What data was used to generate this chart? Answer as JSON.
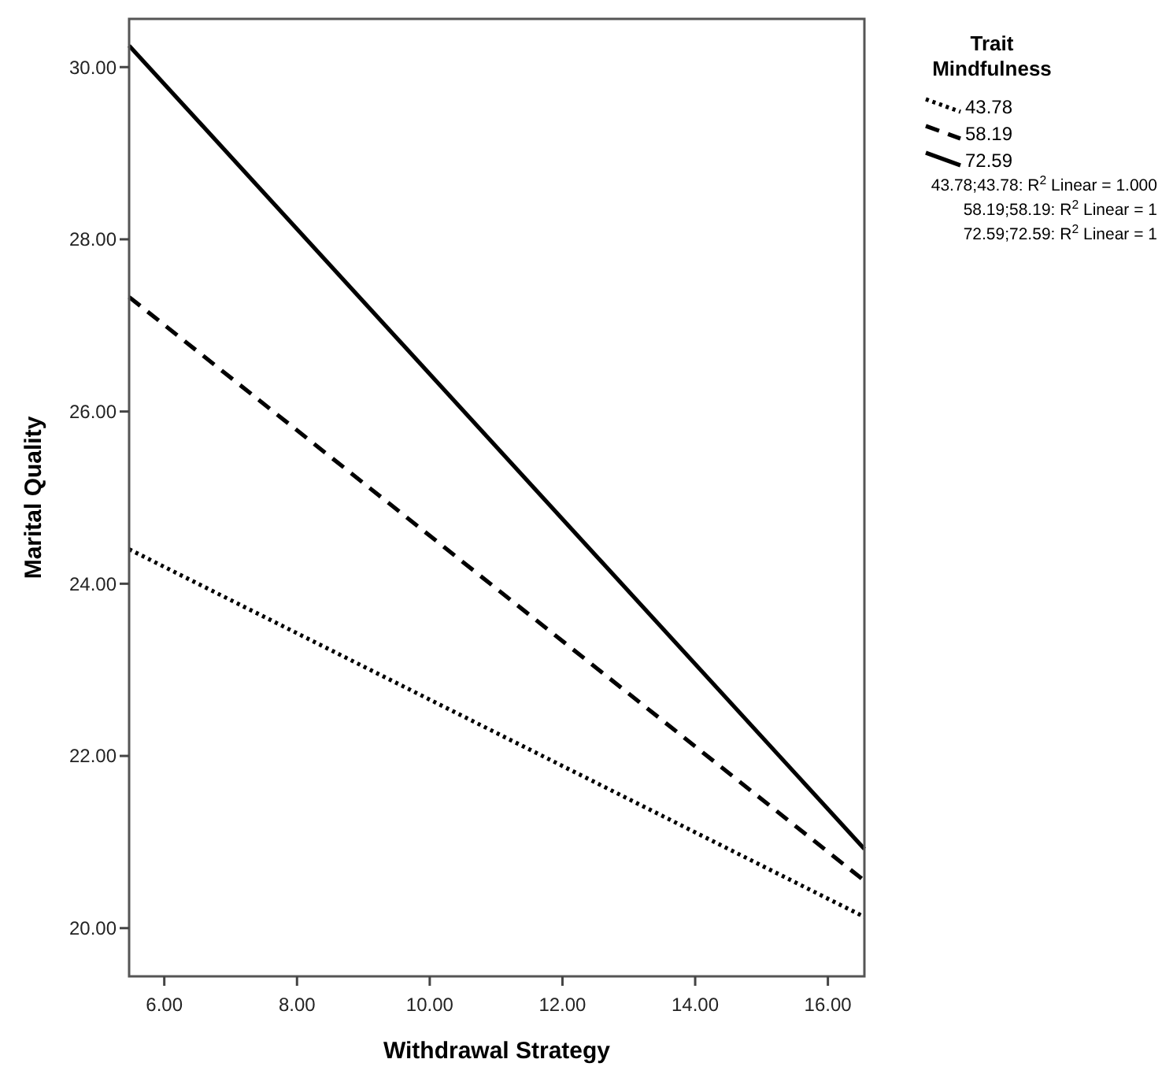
{
  "chart_data": {
    "type": "line",
    "xlabel": "Withdrawal Strategy",
    "ylabel": "Marital Quality",
    "legend_title": "Trait Mindfulness",
    "legend": "top right",
    "grid": false,
    "marker": "none",
    "xlim": [
      5.47,
      16.55
    ],
    "ylim": [
      19.44,
      30.56
    ],
    "xticks": [
      {
        "value": 6,
        "label": "6.00"
      },
      {
        "value": 8,
        "label": "8.00"
      },
      {
        "value": 10,
        "label": "10.00"
      },
      {
        "value": 12,
        "label": "12.00"
      },
      {
        "value": 14,
        "label": "14.00"
      },
      {
        "value": 16,
        "label": "16.00"
      }
    ],
    "yticks": [
      {
        "value": 20,
        "label": "20.00"
      },
      {
        "value": 22,
        "label": "22.00"
      },
      {
        "value": 24,
        "label": "24.00"
      },
      {
        "value": 26,
        "label": "26.00"
      },
      {
        "value": 28,
        "label": "28.00"
      },
      {
        "value": 30,
        "label": "30.00"
      }
    ],
    "x": [
      5.47,
      16.55
    ],
    "series": [
      {
        "name": "43.78",
        "color": "#000000",
        "line_style": "dotted",
        "values": [
          24.4,
          20.13
        ]
      },
      {
        "name": "58.19",
        "color": "#000000",
        "line_style": "dashed",
        "values": [
          27.33,
          20.55
        ]
      },
      {
        "name": "72.59",
        "color": "#000000",
        "line_style": "solid",
        "values": [
          30.25,
          20.92
        ]
      }
    ],
    "annotations": [
      "43.78;43.78: R$^{2}$ Linear = 1.000",
      "58.19;58.19: R$^{2}$ Linear = 1",
      "72.59;72.59: R$^{2}$ Linear = 1"
    ]
  }
}
